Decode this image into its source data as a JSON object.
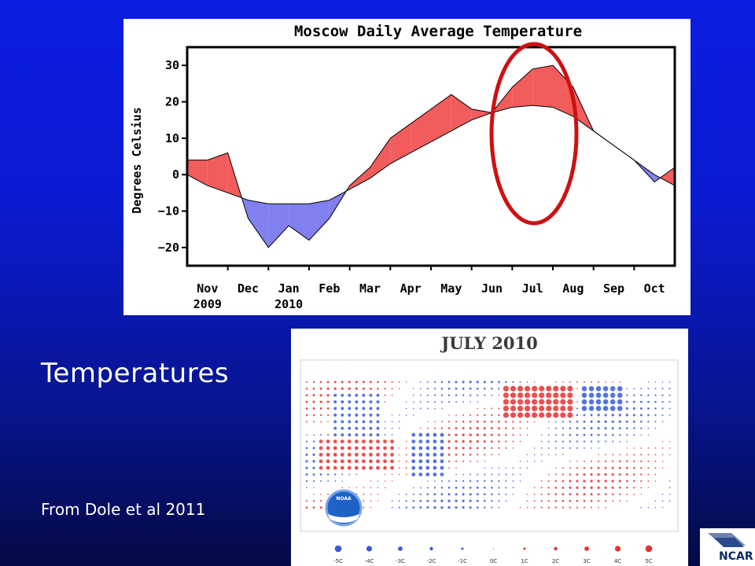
{
  "slide": {
    "heading": "Temperatures",
    "citation": "From Dole et al 2011",
    "logo_text": "NCAR"
  },
  "chart_data": [
    {
      "type": "area",
      "title": "Moscow Daily Average Temperature",
      "xlabel": "",
      "ylabel": "Degrees Celsius",
      "ylim": [
        -25,
        35
      ],
      "yticks": [
        "30",
        "20",
        "10",
        "0",
        "−10",
        "−20"
      ],
      "month_labels": [
        "Nov",
        "Dec",
        "Jan",
        "Feb",
        "Mar",
        "Apr",
        "May",
        "Jun",
        "Jul",
        "Aug",
        "Sep",
        "Oct"
      ],
      "year_labels": [
        "2009",
        "2010"
      ],
      "colors": {
        "above": "#f25c5c",
        "below": "#8080f0"
      },
      "series": [
        {
          "name": "",
          "x": [
            "Nov 1",
            "Nov 15",
            "Dec 1",
            "Dec 15",
            "Jan 1",
            "Jan 15",
            "Feb 1",
            "Feb 15",
            "Mar 1",
            "Mar 15",
            "Apr 1",
            "Apr 15",
            "May 1",
            "May 15",
            "Jun 1",
            "Jun 15",
            "Jul 1",
            "Jul 15",
            "Aug 1",
            "Aug 15",
            "Sep 1",
            "Sep 15",
            "Oct 1",
            "Oct 15",
            "Oct 31"
          ],
          "values": [
            4,
            4,
            6,
            -12,
            -20,
            -14,
            -18,
            -12,
            -3,
            2,
            10,
            14,
            18,
            22,
            18,
            17,
            24,
            29,
            30,
            24,
            12,
            8,
            4,
            -2,
            2
          ]
        },
        {
          "name": "",
          "x": [
            "Nov 1",
            "Nov 15",
            "Dec 1",
            "Dec 15",
            "Jan 1",
            "Jan 15",
            "Feb 1",
            "Feb 15",
            "Mar 1",
            "Mar 15",
            "Apr 1",
            "Apr 15",
            "May 1",
            "May 15",
            "Jun 1",
            "Jun 15",
            "Jul 1",
            "Jul 15",
            "Aug 1",
            "Aug 15",
            "Sep 1",
            "Sep 15",
            "Oct 1",
            "Oct 15",
            "Oct 31"
          ],
          "values": [
            0,
            -3,
            -5,
            -7,
            -8,
            -8,
            -8,
            -7,
            -4,
            -1,
            3,
            6,
            9,
            12,
            15,
            17,
            18.5,
            19,
            18.5,
            16,
            12,
            8,
            4,
            0,
            -3
          ]
        }
      ]
    },
    {
      "type": "heatmap",
      "title": "JULY 2010",
      "legend": [
        "-5C",
        "-4C",
        "-3C",
        "-2C",
        "-1C",
        "0C",
        "1C",
        "2C",
        "3C",
        "4C",
        "5C"
      ],
      "colors": {
        "warm": "#e83030",
        "cool": "#3a5ad8"
      },
      "logo_text": "NOAA"
    }
  ]
}
